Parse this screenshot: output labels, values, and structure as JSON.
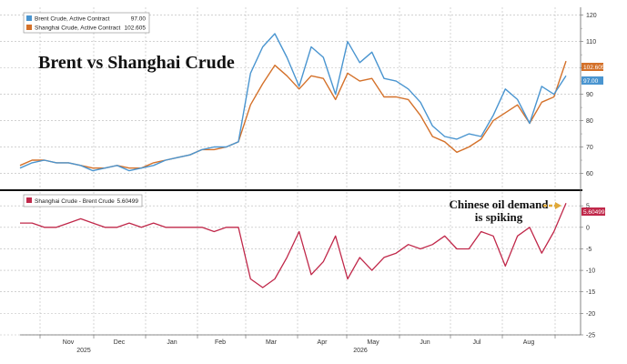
{
  "chart_data": [
    {
      "type": "line",
      "title": "Brent vs Shanghai Crude",
      "x": [
        "Oct 16",
        "Oct 23",
        "Oct 30",
        "Nov 6",
        "Nov 13",
        "Nov 20",
        "Nov 27",
        "Dec 4",
        "Dec 11",
        "Dec 18",
        "Dec 25",
        "Jan 1",
        "Jan 8",
        "Jan 15",
        "Jan 22",
        "Jan 29",
        "Feb 5",
        "Feb 12",
        "Feb 19",
        "Feb 26",
        "Mar 5",
        "Mar 12",
        "Mar 19",
        "Mar 26",
        "Apr 2",
        "Apr 9",
        "Apr 16",
        "Apr 23",
        "Apr 30",
        "May 7",
        "May 14",
        "May 21",
        "May 28",
        "Jun 4",
        "Jun 11",
        "Jun 18",
        "Jun 25",
        "Jul 2",
        "Jul 9",
        "Jul 16",
        "Jul 23",
        "Jul 30",
        "Aug 6",
        "Aug 13",
        "Aug 20",
        "Aug 27"
      ],
      "x_tick_labels": [
        "Nov",
        "Dec",
        "Jan",
        "Feb",
        "Mar",
        "Apr",
        "May",
        "Jun",
        "Jul",
        "Aug"
      ],
      "year_labels": [
        "2025",
        "2026"
      ],
      "series": [
        {
          "name": "Brent Crude, Active Contract",
          "last_value": "97.00",
          "color": "#4a95d0",
          "values": [
            62,
            64,
            65,
            64,
            64,
            63,
            61,
            62,
            63,
            61,
            62,
            63,
            65,
            66,
            67,
            69,
            70,
            70,
            72,
            98,
            108,
            113,
            104,
            93,
            108,
            104,
            90,
            110,
            102,
            106,
            96,
            95,
            92,
            87,
            78,
            74,
            73,
            75,
            74,
            82,
            92,
            88,
            79,
            93,
            90,
            97
          ]
        },
        {
          "name": "Shanghai Crude, Active Contract",
          "last_value": "102.605",
          "color": "#d4712a",
          "values": [
            63,
            65,
            65,
            64,
            64,
            63,
            62,
            62,
            63,
            62,
            62,
            64,
            65,
            66,
            67,
            69,
            69,
            70,
            72,
            86,
            94,
            101,
            97,
            92,
            97,
            96,
            88,
            98,
            95,
            96,
            89,
            89,
            88,
            82,
            74,
            72,
            68,
            70,
            73,
            80,
            83,
            86,
            79,
            87,
            89,
            102.6
          ]
        }
      ],
      "ylim": [
        55,
        123
      ],
      "yticks": [
        60,
        70,
        80,
        90,
        100,
        110,
        120
      ]
    },
    {
      "type": "line",
      "x": [
        "Oct 16",
        "Oct 23",
        "Oct 30",
        "Nov 6",
        "Nov 13",
        "Nov 20",
        "Nov 27",
        "Dec 4",
        "Dec 11",
        "Dec 18",
        "Dec 25",
        "Jan 1",
        "Jan 8",
        "Jan 15",
        "Jan 22",
        "Jan 29",
        "Feb 5",
        "Feb 12",
        "Feb 19",
        "Feb 26",
        "Mar 5",
        "Mar 12",
        "Mar 19",
        "Mar 26",
        "Apr 2",
        "Apr 9",
        "Apr 16",
        "Apr 23",
        "Apr 30",
        "May 7",
        "May 14",
        "May 21",
        "May 28",
        "Jun 4",
        "Jun 11",
        "Jun 18",
        "Jun 25",
        "Jul 2",
        "Jul 9",
        "Jul 16",
        "Jul 23",
        "Jul 30",
        "Aug 6",
        "Aug 13",
        "Aug 20",
        "Aug 27"
      ],
      "series": [
        {
          "name": "Shanghai Crude - Brent Crude",
          "last_value": "5.60499",
          "color": "#c0284a",
          "values": [
            1,
            1,
            0,
            0,
            1,
            2,
            1,
            0,
            0,
            1,
            0,
            1,
            0,
            0,
            0,
            0,
            -1,
            0,
            0,
            -12,
            -14,
            -12,
            -7,
            -1,
            -11,
            -8,
            -2,
            -12,
            -7,
            -10,
            -7,
            -6,
            -4,
            -5,
            -4,
            -2,
            -5,
            -5,
            -1,
            -2,
            -9,
            -2,
            0,
            -6,
            -1,
            5.6
          ]
        }
      ],
      "ylim": [
        -25,
        8
      ],
      "yticks": [
        -25,
        -20,
        -15,
        -10,
        -5,
        0,
        5
      ],
      "annotation": "Chinese oil demand is spiking",
      "annotation_lines": [
        "Chinese oil demand",
        "is spiking"
      ]
    }
  ],
  "colors": {
    "brent": "#4a95d0",
    "shanghai": "#d4712a",
    "spread": "#c0284a",
    "divider": "#111111",
    "grid": "#b8b8b8",
    "arrow": "#e0a93a"
  },
  "legend_top": {
    "brent_label": "Brent Crude, Active Contract",
    "brent_value": "97.00",
    "shanghai_label": "Shanghai Crude, Active Contract",
    "shanghai_value": "102.605"
  },
  "legend_bottom": {
    "spread_label": "Shanghai Crude - Brent Crude",
    "spread_value": "5.60499"
  },
  "badges": {
    "top_shanghai": "102.605",
    "top_brent": "97.00",
    "bottom_spread": "5.60499"
  }
}
